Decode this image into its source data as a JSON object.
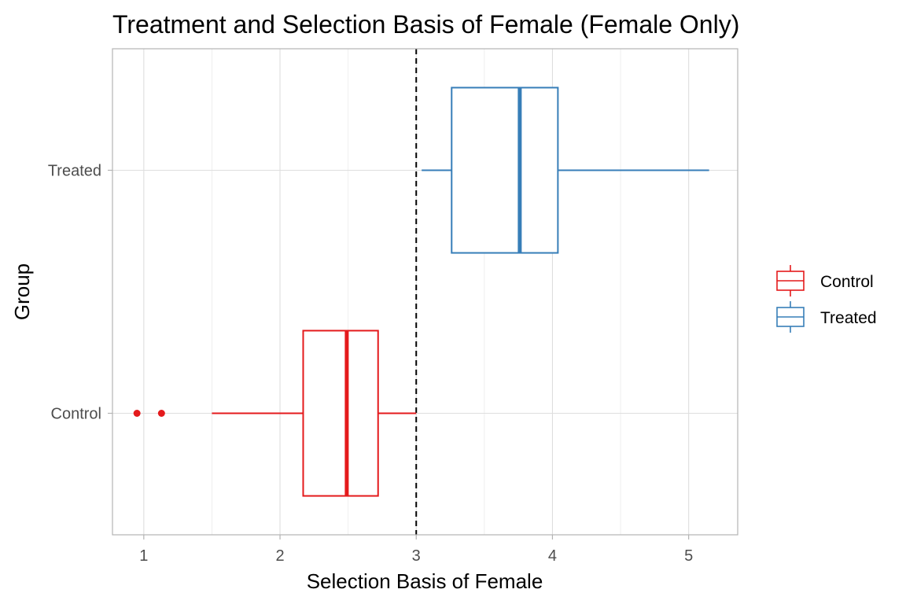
{
  "chart_data": {
    "type": "boxplot",
    "orientation": "horizontal",
    "title": "Treatment and Selection Basis of Female (Female Only)",
    "xlabel": "Selection Basis of Female",
    "ylabel": "Group",
    "xlim": [
      0.77,
      5.36
    ],
    "x_ticks": [
      "1",
      "2",
      "3",
      "4",
      "5"
    ],
    "x_tick_values": [
      1,
      2,
      3,
      4,
      5
    ],
    "categories": [
      "Control",
      "Treated"
    ],
    "grid": true,
    "reference_line": {
      "x": 3,
      "style": "dashed",
      "color": "#000000"
    },
    "legend": {
      "placement": "right",
      "entries": [
        "Control",
        "Treated"
      ]
    },
    "series": [
      {
        "name": "Control",
        "color": "#e41a1c",
        "whisker_low": 1.5,
        "q1": 2.17,
        "median": 2.49,
        "q3": 2.72,
        "whisker_high": 3.0,
        "outliers": [
          0.95,
          1.13
        ]
      },
      {
        "name": "Treated",
        "color": "#377eb8",
        "whisker_low": 3.04,
        "q1": 3.26,
        "median": 3.76,
        "q3": 4.04,
        "whisker_high": 5.15,
        "outliers": []
      }
    ]
  }
}
